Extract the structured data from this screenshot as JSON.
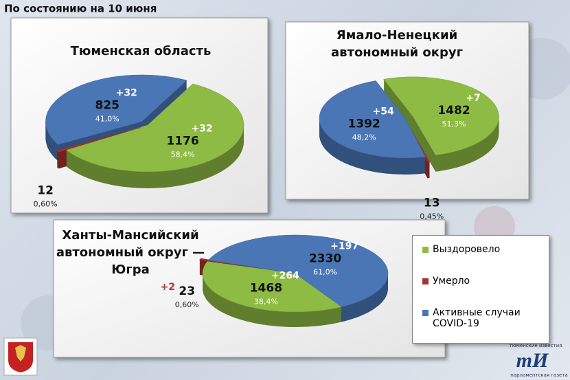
{
  "header": "По состоянию на 10 июня",
  "legend": {
    "items": [
      "Выздоровело",
      "Умерло",
      "Активные случаи COVID-19"
    ],
    "colors": [
      "#8dbb43",
      "#a8322d",
      "#4a76b6"
    ]
  },
  "chart_data": [
    {
      "type": "pie",
      "title": [
        "Тюменская область"
      ],
      "values": [
        1176,
        12,
        825
      ],
      "deltas": [
        "+32",
        null,
        "+32"
      ],
      "shares": [
        "58,4%",
        "0,60%",
        "41,0%"
      ]
    },
    {
      "type": "pie",
      "title": [
        "Ямало-Ненецкий",
        "автономный округ"
      ],
      "values": [
        1482,
        13,
        1392
      ],
      "deltas": [
        "+7",
        null,
        "+54"
      ],
      "shares": [
        "51,3%",
        "0,45%",
        "48,2%"
      ]
    },
    {
      "type": "pie",
      "title": [
        "Ханты-Мансийский",
        "автономный округ —",
        "Югра"
      ],
      "values": [
        1468,
        23,
        2330
      ],
      "deltas": [
        "+264",
        "+2",
        "+197"
      ],
      "shares": [
        "38,4%",
        "0,60%",
        "61,0%"
      ]
    }
  ],
  "logo": {
    "top": "тюменские известия",
    "mark": "тИ",
    "bottom": "парламентская газета"
  }
}
